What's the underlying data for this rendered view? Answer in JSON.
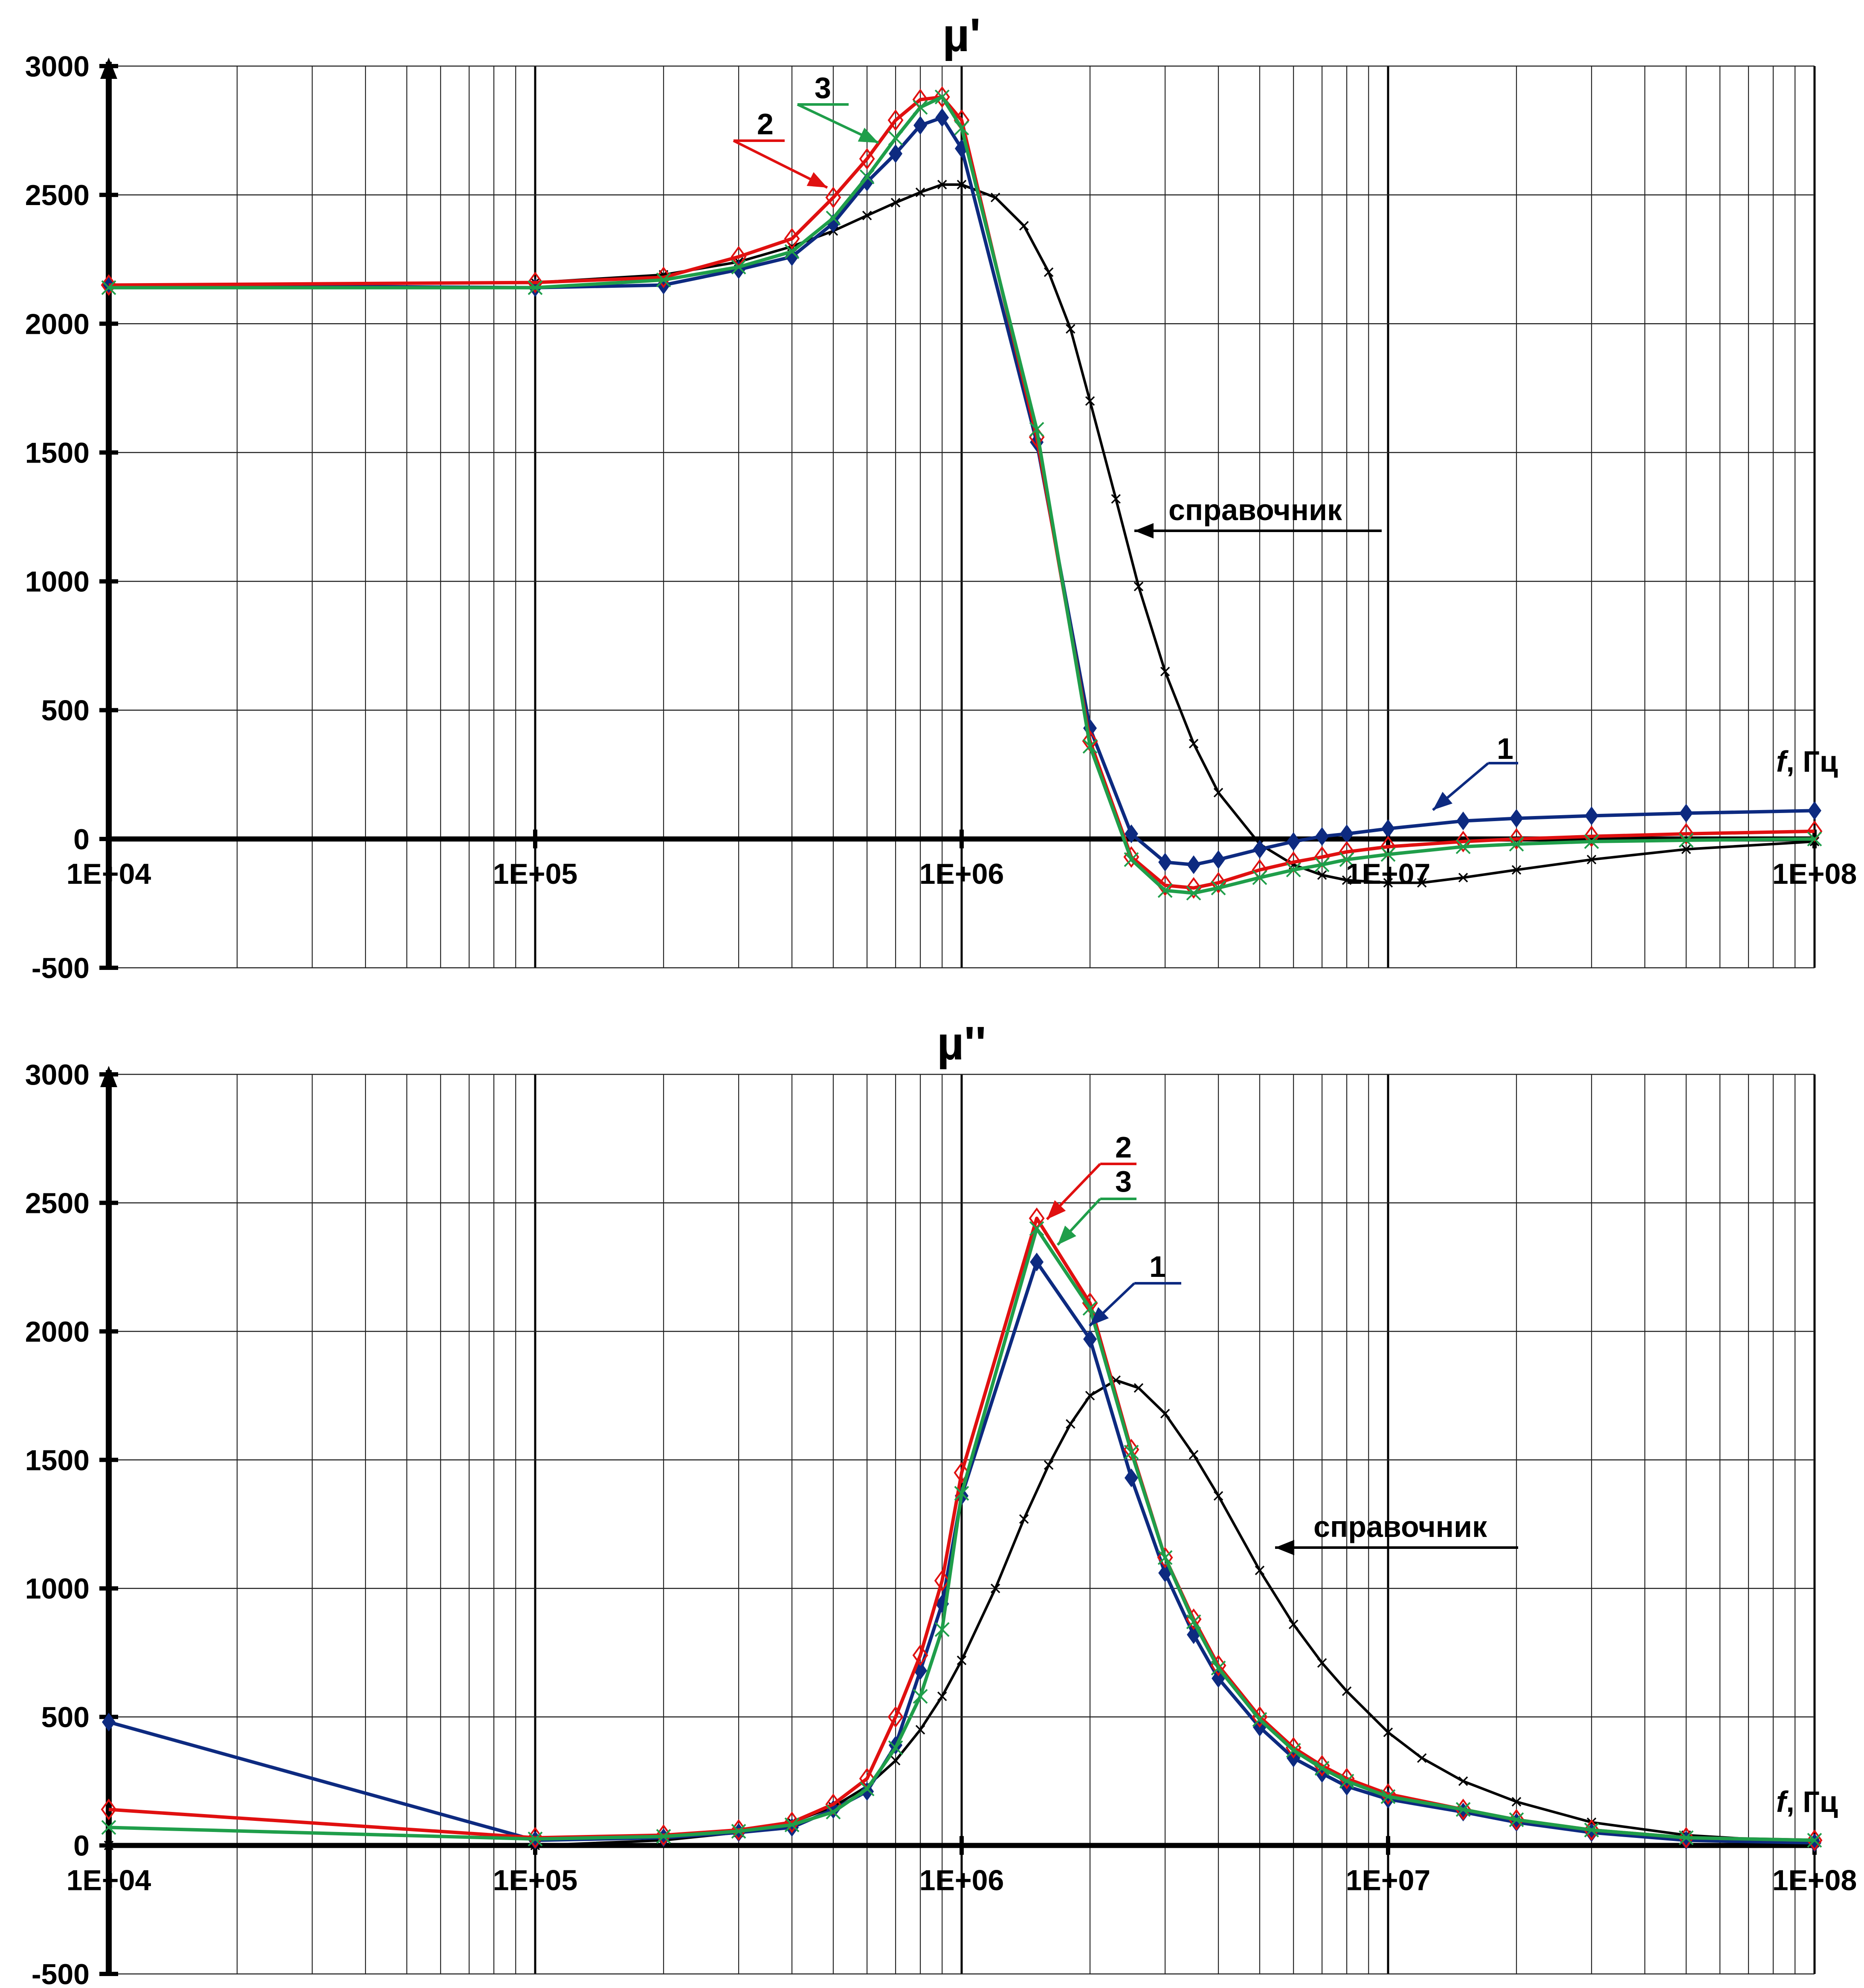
{
  "chart_data": [
    {
      "type": "line",
      "title": "µ'",
      "xscale": "log",
      "xlim": [
        10000,
        100000000
      ],
      "ylim": [
        -500,
        3000
      ],
      "xtick_labels": [
        "1E+04",
        "1E+05",
        "1E+06",
        "1E+07",
        "1E+08"
      ],
      "ytick_labels": [
        "-500",
        "0",
        "500",
        "1000",
        "1500",
        "2000",
        "2500",
        "3000"
      ],
      "axis_label_f": "f",
      "axis_label_unit": ", Гц",
      "grid": true,
      "series": [
        {
          "name": "1",
          "color": "#0d2a80",
          "marker": "diamond-filled",
          "x": [
            10000,
            100000,
            200000,
            300000,
            400000,
            500000,
            600000,
            700000,
            800000,
            900000,
            1000000,
            1500000,
            2000000,
            2500000,
            3000000,
            3500000,
            4000000,
            5000000,
            6000000,
            7000000,
            8000000,
            10000000,
            15000000,
            20000000,
            30000000,
            50000000,
            100000000
          ],
          "y": [
            2150,
            2140,
            2150,
            2210,
            2260,
            2390,
            2550,
            2660,
            2770,
            2800,
            2680,
            1540,
            430,
            20,
            -90,
            -100,
            -80,
            -40,
            -10,
            10,
            20,
            40,
            70,
            80,
            90,
            100,
            110
          ]
        },
        {
          "name": "2",
          "color": "#e01010",
          "marker": "diamond-open",
          "x": [
            10000,
            100000,
            200000,
            300000,
            400000,
            500000,
            600000,
            700000,
            800000,
            900000,
            1000000,
            1500000,
            2000000,
            2500000,
            3000000,
            3500000,
            4000000,
            5000000,
            6000000,
            7000000,
            8000000,
            10000000,
            15000000,
            20000000,
            30000000,
            50000000,
            100000000
          ],
          "y": [
            2150,
            2160,
            2180,
            2260,
            2330,
            2490,
            2640,
            2790,
            2870,
            2880,
            2790,
            1560,
            380,
            -70,
            -180,
            -190,
            -170,
            -120,
            -90,
            -70,
            -50,
            -30,
            -10,
            0,
            10,
            20,
            30
          ]
        },
        {
          "name": "3",
          "color": "#1f9e4a",
          "marker": "x",
          "x": [
            10000,
            100000,
            200000,
            300000,
            400000,
            500000,
            600000,
            700000,
            800000,
            900000,
            1000000,
            1500000,
            2000000,
            2500000,
            3000000,
            3500000,
            4000000,
            5000000,
            6000000,
            7000000,
            8000000,
            10000000,
            15000000,
            20000000,
            30000000,
            50000000,
            100000000
          ],
          "y": [
            2140,
            2140,
            2170,
            2220,
            2280,
            2410,
            2570,
            2720,
            2840,
            2880,
            2760,
            1590,
            360,
            -80,
            -200,
            -210,
            -190,
            -150,
            -120,
            -100,
            -80,
            -60,
            -30,
            -20,
            -10,
            -5,
            0
          ]
        },
        {
          "name": "справочник",
          "color": "#000000",
          "marker": "x-small",
          "x": [
            10000,
            100000,
            200000,
            300000,
            400000,
            500000,
            600000,
            700000,
            800000,
            900000,
            1000000,
            1200000,
            1400000,
            1600000,
            1800000,
            2000000,
            2300000,
            2600000,
            3000000,
            3500000,
            4000000,
            5000000,
            6000000,
            7000000,
            8000000,
            10000000,
            12000000,
            15000000,
            20000000,
            30000000,
            50000000,
            100000000
          ],
          "y": [
            2150,
            2160,
            2190,
            2240,
            2300,
            2360,
            2420,
            2470,
            2510,
            2540,
            2540,
            2490,
            2380,
            2200,
            1980,
            1700,
            1320,
            980,
            650,
            370,
            180,
            -20,
            -100,
            -140,
            -160,
            -170,
            -170,
            -150,
            -120,
            -80,
            -40,
            -10
          ]
        }
      ],
      "annotations": [
        "1",
        "2",
        "3",
        "справочник"
      ]
    },
    {
      "type": "line",
      "title": "µ''",
      "xscale": "log",
      "xlim": [
        10000,
        100000000
      ],
      "ylim": [
        -500,
        3000
      ],
      "xtick_labels": [
        "1E+04",
        "1E+05",
        "1E+06",
        "1E+07",
        "1E+08"
      ],
      "ytick_labels": [
        "-500",
        "0",
        "500",
        "1000",
        "1500",
        "2000",
        "2500",
        "3000"
      ],
      "axis_label_f": "f",
      "axis_label_unit": ", Гц",
      "grid": true,
      "series": [
        {
          "name": "1",
          "color": "#0d2a80",
          "marker": "diamond-filled",
          "x": [
            10000,
            100000,
            200000,
            300000,
            400000,
            500000,
            600000,
            700000,
            800000,
            900000,
            1000000,
            1500000,
            2000000,
            2500000,
            3000000,
            3500000,
            4000000,
            5000000,
            6000000,
            7000000,
            8000000,
            10000000,
            15000000,
            20000000,
            30000000,
            50000000,
            100000000
          ],
          "y": [
            480,
            20,
            30,
            50,
            70,
            140,
            210,
            390,
            680,
            940,
            1360,
            2270,
            1970,
            1430,
            1060,
            820,
            650,
            460,
            340,
            280,
            230,
            180,
            130,
            90,
            50,
            20,
            10
          ]
        },
        {
          "name": "2",
          "color": "#e01010",
          "marker": "diamond-open",
          "x": [
            10000,
            100000,
            200000,
            300000,
            400000,
            500000,
            600000,
            700000,
            800000,
            900000,
            1000000,
            1500000,
            2000000,
            2500000,
            3000000,
            3500000,
            4000000,
            5000000,
            6000000,
            7000000,
            8000000,
            10000000,
            15000000,
            20000000,
            30000000,
            50000000,
            100000000
          ],
          "y": [
            140,
            30,
            40,
            60,
            90,
            160,
            260,
            500,
            740,
            1030,
            1450,
            2440,
            2110,
            1540,
            1120,
            880,
            700,
            500,
            380,
            310,
            260,
            200,
            140,
            100,
            60,
            30,
            20
          ]
        },
        {
          "name": "3",
          "color": "#1f9e4a",
          "marker": "x",
          "x": [
            10000,
            100000,
            200000,
            300000,
            400000,
            500000,
            600000,
            700000,
            800000,
            900000,
            1000000,
            1500000,
            2000000,
            2500000,
            3000000,
            3500000,
            4000000,
            5000000,
            6000000,
            7000000,
            8000000,
            10000000,
            15000000,
            20000000,
            30000000,
            50000000,
            100000000
          ],
          "y": [
            70,
            25,
            35,
            55,
            80,
            130,
            220,
            380,
            580,
            840,
            1370,
            2400,
            2090,
            1530,
            1120,
            870,
            690,
            490,
            370,
            300,
            250,
            190,
            140,
            100,
            60,
            30,
            20
          ]
        },
        {
          "name": "справочник",
          "color": "#000000",
          "marker": "x-small",
          "x": [
            10000,
            100000,
            200000,
            300000,
            400000,
            500000,
            600000,
            700000,
            800000,
            900000,
            1000000,
            1200000,
            1400000,
            1600000,
            1800000,
            2000000,
            2300000,
            2600000,
            3000000,
            3500000,
            4000000,
            5000000,
            6000000,
            7000000,
            8000000,
            10000000,
            12000000,
            15000000,
            20000000,
            30000000,
            50000000,
            100000000
          ],
          "y": [
            0,
            0,
            20,
            50,
            90,
            150,
            230,
            330,
            450,
            580,
            720,
            1000,
            1270,
            1480,
            1640,
            1750,
            1810,
            1780,
            1680,
            1520,
            1360,
            1070,
            860,
            710,
            600,
            440,
            340,
            250,
            170,
            90,
            40,
            10
          ]
        }
      ],
      "annotations": [
        "2",
        "3",
        "1",
        "справочник"
      ]
    }
  ]
}
